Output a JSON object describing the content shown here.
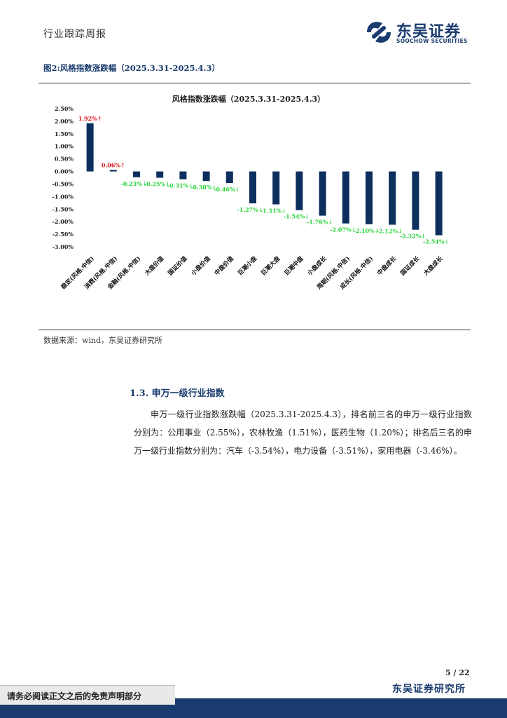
{
  "header": {
    "section": "行业跟踪周报",
    "logo_cn": "东吴证券",
    "logo_en": "SOOCHOW SECURITIES"
  },
  "figure": {
    "label": "图2:风格指数涨跌幅（2025.3.31-2025.4.3）",
    "source": "数据来源：wind，东吴证券研究所"
  },
  "colors": {
    "bar": "#0d2f5e",
    "positive_label": "#e0141e",
    "negative_label": "#2bd43a",
    "brand": "#1a3b6e"
  },
  "chart_data": {
    "type": "bar",
    "title": "风格指数涨跌幅（2025.3.31-2025.4.3）",
    "categories": [
      "稳定(风格.中信)",
      "消费(风格.中信)",
      "金融(风格.中信)",
      "大盘价值",
      "国证价值",
      "小盘价值",
      "中盘价值",
      "巨潮小盘",
      "巨潮大盘",
      "巨潮中盘",
      "小盘成长",
      "周期(风格.中信)",
      "成长(风格.中信)",
      "中盘成长",
      "国证成长",
      "大盘成长"
    ],
    "values": [
      1.92,
      0.06,
      -0.23,
      -0.25,
      -0.31,
      -0.38,
      -0.46,
      -1.27,
      -1.31,
      -1.54,
      -1.76,
      -2.07,
      -2.1,
      -2.12,
      -2.32,
      -2.54
    ],
    "data_labels": [
      "1.92%↑",
      "0.06%↑",
      "-0.23%↓",
      "-0.25%↓",
      "-0.31%↓",
      "-0.38%↓",
      "-0.46%↓",
      "-1.27%↓",
      "-1.31%↓",
      "-1.54%↓",
      "-1.76%↓",
      "-2.07%↓",
      "-2.10%↓",
      "-2.12%↓",
      "-2.32%↓",
      "-2.54%↓"
    ],
    "yticks": [
      "2.50%",
      "2.00%",
      "1.50%",
      "1.00%",
      "0.50%",
      "0.00%",
      "-0.50%",
      "-1.00%",
      "-1.50%",
      "-2.00%",
      "-2.50%",
      "-3.00%"
    ],
    "ylim": [
      -3.0,
      2.5
    ],
    "grid": false,
    "legend": "none"
  },
  "section": {
    "title": "1.3.   申万一级行业指数",
    "paragraph": "申万一级行业指数涨跌幅（2025.3.31-2025.4.3），排名前三名的申万一级行业指数分别为：公用事业（2.55%），农林牧渔（1.51%），医药生物（1.20%）；排名后三名的申万一级行业指数分别为：汽车（-3.54%），电力设备（-3.51%），家用电器（-3.46%）。"
  },
  "footer": {
    "page": "5 / 22",
    "org": "东吴证券研究所",
    "disclaimer": "请务必阅读正文之后的免责声明部分"
  }
}
